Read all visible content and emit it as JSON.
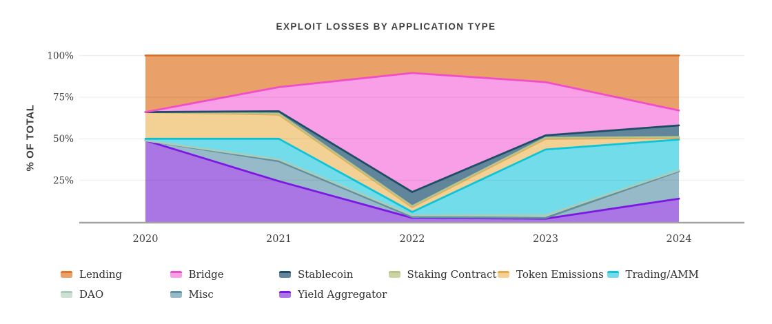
{
  "page": {
    "background": "#ffffff"
  },
  "chart_data": {
    "type": "area",
    "variant": "100pct-stacked",
    "title": "EXPLOIT LOSSES BY APPLICATION TYPE",
    "ylabel": "% OF TOTAL",
    "x_labels": [
      "2020",
      "2021",
      "2022",
      "2023",
      "2024"
    ],
    "y_tick_labels": [
      "100%",
      "75%",
      "50%",
      "25%"
    ],
    "y_tick_values": [
      100,
      75,
      50,
      25
    ],
    "ylim": [
      0,
      100
    ],
    "grid": "horizontal",
    "legend_position": "bottom",
    "axis_color": "#a2a2a2",
    "gridline_color": "rgba(45,45,45,0.07)",
    "series": [
      {
        "name": "Lending",
        "fill": "#E9A069",
        "stroke": "#E0772B",
        "values": [
          34,
          19,
          10.5,
          16,
          33
        ]
      },
      {
        "name": "Bridge",
        "fill": "#F99FE8",
        "stroke": "#F04FC8",
        "values": [
          0,
          14.5,
          71.5,
          32,
          9
        ]
      },
      {
        "name": "Stablecoin",
        "fill": "#61859A",
        "stroke": "#1D4E66",
        "values": [
          0,
          1.5,
          8.5,
          1.5,
          7
        ]
      },
      {
        "name": "Staking Contract",
        "fill": "#CBD4A4",
        "stroke": "#B9C48A",
        "values": [
          0,
          0.5,
          0.5,
          0.5,
          0.5
        ]
      },
      {
        "name": "Token Emissions",
        "fill": "#F3D194",
        "stroke": "#E8A74D",
        "values": [
          16,
          14.5,
          3,
          6.5,
          1
        ]
      },
      {
        "name": "Trading/AMM",
        "fill": "#73DCEA",
        "stroke": "#0FC3D9",
        "values": [
          1,
          12.5,
          2,
          39.5,
          18.5
        ]
      },
      {
        "name": "DAO",
        "fill": "#CCE1D4",
        "stroke": "#A9CDBA",
        "values": [
          0,
          1,
          1,
          1.5,
          0.5
        ]
      },
      {
        "name": "Misc",
        "fill": "#97BAC8",
        "stroke": "#61909F",
        "values": [
          0,
          12,
          0.5,
          0.5,
          16.5
        ]
      },
      {
        "name": "Yield Aggregator",
        "fill": "#A976E3",
        "stroke": "#7C17E4",
        "values": [
          49,
          24.5,
          2.5,
          2,
          14
        ]
      }
    ]
  }
}
